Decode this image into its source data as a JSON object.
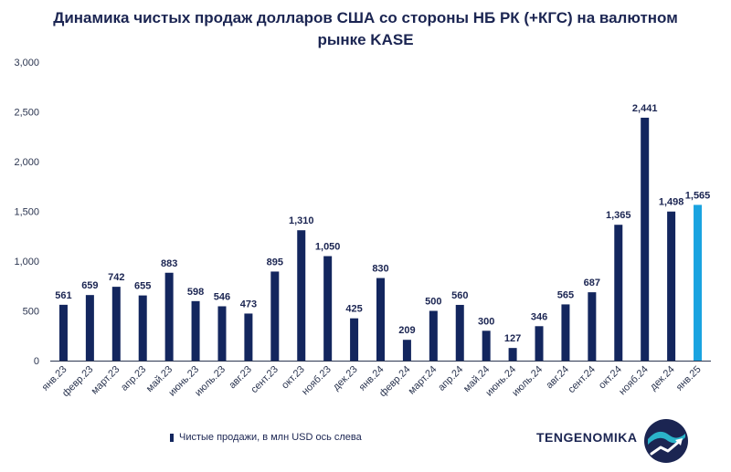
{
  "chart_data": {
    "type": "bar",
    "title": "Динамика чистых продаж долларов США со стороны НБ РК (+КГС) на валютном рынке KASE",
    "categories": [
      "янв.23",
      "февр.23",
      "март.23",
      "апр.23",
      "май.23",
      "июнь.23",
      "июль.23",
      "авг.23",
      "сент.23",
      "окт.23",
      "нояб.23",
      "дек.23",
      "янв.24",
      "февр.24",
      "март.24",
      "апр.24",
      "май.24",
      "июнь.24",
      "июль.24",
      "авг.24",
      "сент.24",
      "окт.24",
      "нояб.24",
      "дек.24",
      "янв.25"
    ],
    "series": [
      {
        "name": "Чистые продажи, в млн USD ось слева",
        "values": [
          561,
          659,
          742,
          655,
          883,
          598,
          546,
          473,
          895,
          1310,
          1050,
          425,
          830,
          209,
          500,
          560,
          300,
          127,
          346,
          565,
          687,
          1365,
          2441,
          1498,
          1565
        ],
        "labels": [
          "561",
          "659",
          "742",
          "655",
          "883",
          "598",
          "546",
          "473",
          "895",
          "1,310",
          "1,050",
          "425",
          "830",
          "209",
          "500",
          "560",
          "300",
          "127",
          "346",
          "565",
          "687",
          "1,365",
          "2,441",
          "1,498",
          "1,565"
        ]
      }
    ],
    "ylim": [
      0,
      3000
    ],
    "yticks": [
      0,
      500,
      1000,
      1500,
      2000,
      2500,
      3000
    ],
    "ytick_labels": [
      "0",
      "500",
      "1,000",
      "1,500",
      "2,000",
      "2,500",
      "3,000"
    ],
    "grid": false,
    "legend_position": "bottom-left",
    "colors": {
      "bar": "#13265e",
      "highlight": "#1aa3e0"
    },
    "highlight_index": 24
  },
  "legend": {
    "label": "Чистые продажи, в млн USD ось слева"
  },
  "brand": {
    "name": "TENGENOMIKA"
  },
  "logo": {
    "icon": "tengenomika-logo-icon"
  }
}
